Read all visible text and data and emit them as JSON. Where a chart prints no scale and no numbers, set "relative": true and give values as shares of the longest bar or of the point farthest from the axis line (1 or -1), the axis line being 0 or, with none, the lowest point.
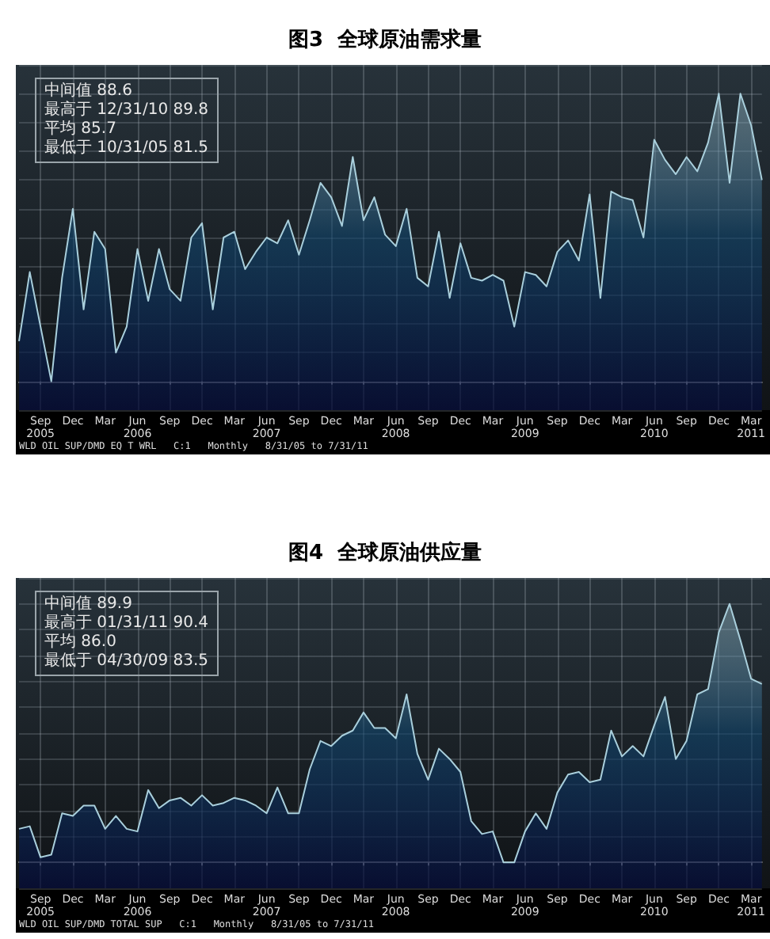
{
  "chart_data": [
    {
      "type": "area",
      "title": "图3  全球原油需求量",
      "relative": true,
      "grid": true,
      "marker": "none",
      "categories": [
        null,
        null,
        "Sep\n2005",
        null,
        null,
        "Dec",
        null,
        null,
        "Mar",
        null,
        null,
        "Jun\n2006",
        null,
        null,
        "Sep",
        null,
        null,
        "Dec",
        null,
        null,
        "Mar",
        null,
        null,
        "Jun\n2007",
        null,
        null,
        "Sep",
        null,
        null,
        "Dec",
        null,
        null,
        "Mar",
        null,
        null,
        "Jun\n2008",
        null,
        null,
        "Sep",
        null,
        null,
        "Dec",
        null,
        null,
        "Mar",
        null,
        null,
        "Jun\n2009",
        null,
        null,
        "Sep",
        null,
        null,
        "Dec",
        null,
        null,
        "Mar",
        null,
        null,
        "Jun\n2010",
        null,
        null,
        "Sep",
        null,
        null,
        "Dec",
        null,
        null,
        "Mar\n2011",
        null
      ],
      "series": [
        {
          "color": "#a9cfdc",
          "values": [
            0.14,
            0.38,
            0.19,
            0,
            0.36,
            0.6,
            0.25,
            0.52,
            0.46,
            0.1,
            0.19,
            0.46,
            0.28,
            0.46,
            0.32,
            0.28,
            0.5,
            0.55,
            0.25,
            0.5,
            0.52,
            0.39,
            0.45,
            0.5,
            0.48,
            0.56,
            0.44,
            0.56,
            0.69,
            0.64,
            0.54,
            0.78,
            0.56,
            0.64,
            0.51,
            0.47,
            0.6,
            0.36,
            0.33,
            0.52,
            0.29,
            0.48,
            0.36,
            0.35,
            0.37,
            0.35,
            0.19,
            0.38,
            0.37,
            0.33,
            0.45,
            0.49,
            0.42,
            0.65,
            0.29,
            0.66,
            0.64,
            0.63,
            0.5,
            0.84,
            0.77,
            0.72,
            0.78,
            0.73,
            0.83,
            1,
            0.69,
            1,
            0.89,
            0.7
          ]
        }
      ],
      "annotations": [
        "中间值 88.6",
        "最高于 12/31/10 89.8",
        "平均 85.7",
        "最低于 10/31/05 81.5",
        "WLD OIL SUP/DMD EQ T WRL   C:1   Monthly   8/31/05 to 7/31/11"
      ]
    },
    {
      "type": "area",
      "title": "图4  全球原油供应量",
      "relative": true,
      "grid": true,
      "marker": "none",
      "categories": [
        null,
        null,
        "Sep\n2005",
        null,
        null,
        "Dec",
        null,
        null,
        "Mar",
        null,
        null,
        "Jun\n2006",
        null,
        null,
        "Sep",
        null,
        null,
        "Dec",
        null,
        null,
        "Mar",
        null,
        null,
        "Jun\n2007",
        null,
        null,
        "Sep",
        null,
        null,
        "Dec",
        null,
        null,
        "Mar",
        null,
        null,
        "Jun\n2008",
        null,
        null,
        "Sep",
        null,
        null,
        "Dec",
        null,
        null,
        "Mar",
        null,
        null,
        "Jun\n2009",
        null,
        null,
        "Sep",
        null,
        null,
        "Dec",
        null,
        null,
        "Mar",
        null,
        null,
        "Jun\n2010",
        null,
        null,
        "Sep",
        null,
        null,
        "Dec",
        null,
        null,
        "Mar\n2011",
        null
      ],
      "series": [
        {
          "color": "#a9cfdc",
          "values": [
            0.13,
            0.14,
            0.02,
            0.03,
            0.19,
            0.18,
            0.22,
            0.22,
            0.13,
            0.18,
            0.13,
            0.12,
            0.28,
            0.21,
            0.24,
            0.25,
            0.22,
            0.26,
            0.22,
            0.23,
            0.25,
            0.24,
            0.22,
            0.19,
            0.29,
            0.19,
            0.19,
            0.36,
            0.47,
            0.45,
            0.49,
            0.51,
            0.58,
            0.52,
            0.52,
            0.48,
            0.65,
            0.42,
            0.32,
            0.44,
            0.4,
            0.35,
            0.16,
            0.11,
            0.12,
            0,
            0,
            0.12,
            0.19,
            0.13,
            0.27,
            0.34,
            0.35,
            0.31,
            0.32,
            0.51,
            0.41,
            0.45,
            0.41,
            0.53,
            0.64,
            0.4,
            0.47,
            0.65,
            0.67,
            0.89,
            1,
            0.86,
            0.71,
            0.69
          ]
        }
      ],
      "annotations": [
        "中间值 89.9",
        "最高于 01/31/11 90.4",
        "平均 86.0",
        "最低于 04/30/09 83.5",
        "WLD OIL SUP/DMD TOTAL SUP   C:1   Monthly   8/31/05 to 7/31/11"
      ]
    }
  ]
}
